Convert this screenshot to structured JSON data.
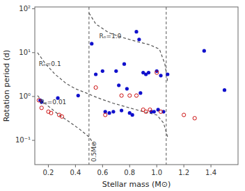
{
  "chart_data": {
    "type": "scatter",
    "x_label": "Stellar mass (M⊙)",
    "y_label": "Rotation period (d)",
    "log": "y",
    "xlim": [
      0.1,
      1.6
    ],
    "ylim": [
      0.028,
      110.0
    ],
    "xticks": [
      0.2,
      0.4,
      0.6,
      0.8,
      {
        "value": 1.0,
        "label": "1.0"
      },
      1.2,
      1.4
    ],
    "yticks": [
      {
        "value": 0.1,
        "label": "10⁻¹"
      },
      {
        "value": 1,
        "label": "10⁰"
      },
      {
        "value": 10,
        "label": "10¹"
      },
      {
        "value": 100,
        "label": "10²"
      }
    ],
    "series": [
      {
        "type": "scatter",
        "marker": "circle",
        "color": "#1010cc",
        "x": [
          0.14,
          0.15,
          0.27,
          0.42,
          0.52,
          0.55,
          0.6,
          0.62,
          0.65,
          0.68,
          0.7,
          0.72,
          0.74,
          0.76,
          0.78,
          0.8,
          0.82,
          0.85,
          0.87,
          0.88,
          0.9,
          0.92,
          0.94,
          0.96,
          0.98,
          1.0,
          1.01,
          1.03,
          1.05,
          1.08,
          1.35,
          1.5
        ],
        "values": [
          0.82,
          0.75,
          0.92,
          1.05,
          16.0,
          3.2,
          3.8,
          0.45,
          0.42,
          0.45,
          3.8,
          1.8,
          0.48,
          5.5,
          1.5,
          0.42,
          0.38,
          30.0,
          20.0,
          1.2,
          3.5,
          3.2,
          3.5,
          0.45,
          0.45,
          3.8,
          0.5,
          3.0,
          0.45,
          3.2,
          11.0,
          1.4
        ]
      },
      {
        "type": "scatter",
        "marker": "open-circle",
        "color": "#cc1010",
        "x": [
          0.13,
          0.15,
          0.2,
          0.22,
          0.28,
          0.3,
          0.55,
          0.62,
          0.74,
          0.8,
          0.85,
          0.92,
          0.95,
          1.0,
          1.03,
          1.2,
          1.28,
          0.9
        ],
        "values": [
          0.82,
          0.55,
          0.45,
          0.42,
          0.38,
          0.35,
          1.6,
          0.38,
          1.05,
          1.05,
          1.05,
          0.45,
          0.5,
          3.5,
          0.45,
          0.38,
          0.32,
          0.5
        ]
      },
      {
        "type": "line",
        "line_style": "dashed",
        "color": "#555555",
        "x": [
          0.5,
          0.55,
          0.65,
          0.75,
          0.85,
          0.95,
          1.02,
          1.06,
          1.08
        ],
        "values": [
          80.0,
          45.0,
          28.0,
          22.0,
          18.0,
          15.0,
          12.0,
          5.5,
          2.2
        ]
      },
      {
        "type": "line",
        "line_style": "dashed",
        "color": "#555555",
        "x": [
          0.12,
          0.18,
          0.25,
          0.33,
          0.4,
          0.48,
          0.54,
          0.6,
          0.68,
          0.8,
          0.9,
          1.0,
          1.05,
          1.08
        ],
        "values": [
          10.0,
          5.5,
          3.2,
          2.0,
          1.5,
          1.2,
          1.0,
          0.85,
          0.7,
          0.55,
          0.45,
          0.38,
          0.25,
          0.12
        ]
      },
      {
        "type": "line",
        "line_style": "dashed",
        "color": "#555555",
        "x": [
          0.12,
          0.15,
          0.2,
          0.27,
          0.35,
          0.43,
          0.5,
          0.55
        ],
        "values": [
          1.05,
          0.82,
          0.6,
          0.4,
          0.27,
          0.18,
          0.12,
          0.07
        ]
      }
    ],
    "vlines": [
      {
        "x": 0.5,
        "label": "0.5M⊙",
        "color": "#555555",
        "line_style": "dashed"
      },
      {
        "x": 1.07,
        "color": "#555555",
        "line_style": "dashed"
      }
    ],
    "annotations": [
      {
        "text": "Rₒ=1.0",
        "x": 0.575,
        "y": 23.0
      },
      {
        "text": "Rₒ=0.1",
        "x": 0.13,
        "y": 5.5
      },
      {
        "text": "Rₒ=0.01",
        "x": 0.14,
        "y": 0.73
      }
    ]
  }
}
